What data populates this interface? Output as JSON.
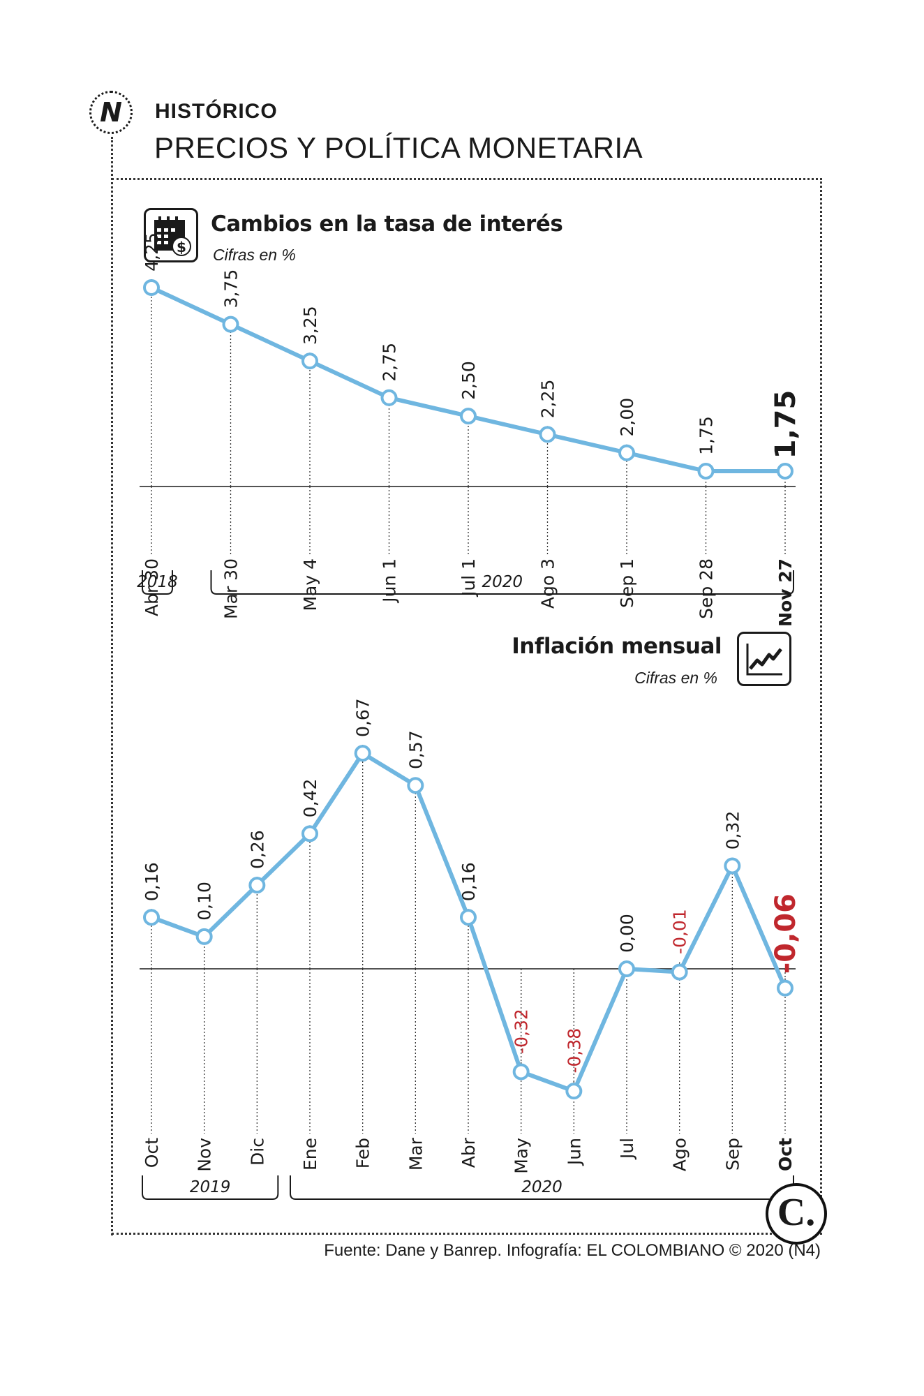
{
  "header": {
    "logo_letter": "N",
    "kicker": "HISTÓRICO",
    "title": "PRECIOS Y POLÍTICA MONETARIA"
  },
  "footer": {
    "source": "Fuente: Dane y Banrep. Infografía: EL COLOMBIANO © 2020 (N4)",
    "badge_letter": "C."
  },
  "colors": {
    "line": "#6fb6e0",
    "negative": "#c0272d",
    "text": "#1a1a1a"
  },
  "icons": [
    "calendar-dollar-icon",
    "trend-line-icon"
  ],
  "chart_data": [
    {
      "type": "line",
      "title": "Cambios en la tasa de interés",
      "subtitle": "Cifras en %",
      "categories": [
        "Abr 30",
        "Mar 30",
        "May 4",
        "Jun 1",
        "Jul 1",
        "Ago 3",
        "Sep 1",
        "Sep 28",
        "Nov 27"
      ],
      "values": [
        4.25,
        3.75,
        3.25,
        2.75,
        2.5,
        2.25,
        2.0,
        1.75,
        1.75
      ],
      "value_labels": [
        "4,25",
        "3,75",
        "3,25",
        "2,75",
        "2,50",
        "2,25",
        "2,00",
        "1,75",
        "1,75"
      ],
      "groups": [
        {
          "label": "2018",
          "from": 0,
          "to": 0
        },
        {
          "label": "2020",
          "from": 1,
          "to": 8
        }
      ],
      "highlight_last": true
    },
    {
      "type": "line",
      "title": "Inflación mensual",
      "subtitle": "Cifras en %",
      "categories": [
        "Oct",
        "Nov",
        "Dic",
        "Ene",
        "Feb",
        "Mar",
        "Abr",
        "May",
        "Jun",
        "Jul",
        "Ago",
        "Sep",
        "Oct"
      ],
      "values": [
        0.16,
        0.1,
        0.26,
        0.42,
        0.67,
        0.57,
        0.16,
        -0.32,
        -0.38,
        0.0,
        -0.01,
        0.32,
        -0.06
      ],
      "value_labels": [
        "0,16",
        "0,10",
        "0,26",
        "0,42",
        "0,67",
        "0,57",
        "0,16",
        "-0,32",
        "-0,38",
        "0,00",
        "-0,01",
        "0,32",
        "-0,06"
      ],
      "groups": [
        {
          "label": "2019",
          "from": 0,
          "to": 2
        },
        {
          "label": "2020",
          "from": 3,
          "to": 12
        }
      ],
      "highlight_last": true
    }
  ]
}
